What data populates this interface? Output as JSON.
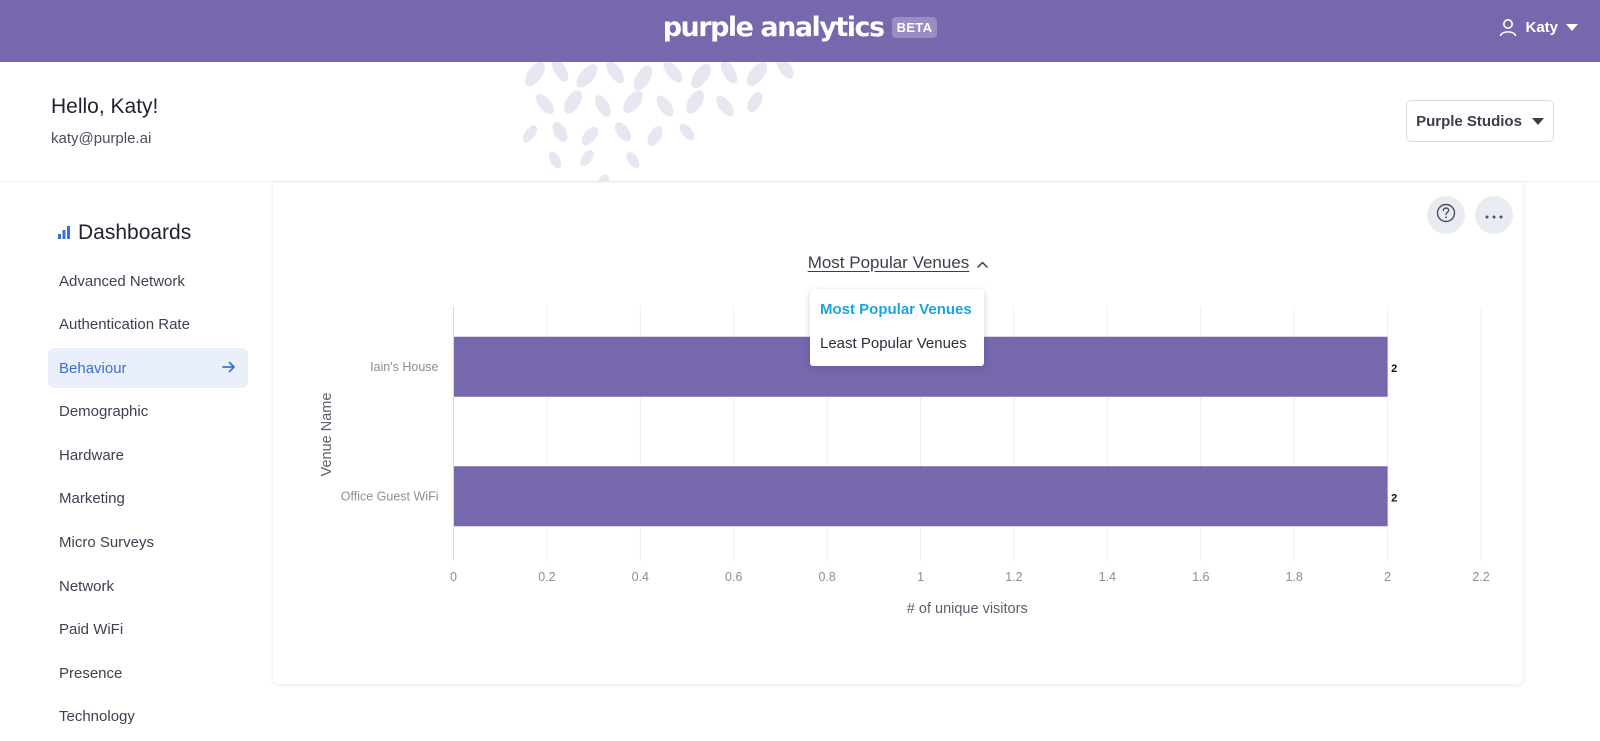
{
  "app": {
    "brand_name": "purple analytics",
    "brand_badge": "BETA",
    "user_name": "Katy"
  },
  "header": {
    "greeting": "Hello, Katy!",
    "email": "katy@purple.ai",
    "org_selector": "Purple Studios"
  },
  "sidebar": {
    "title": "Dashboards",
    "items": [
      {
        "label": "Advanced Network",
        "active": false
      },
      {
        "label": "Authentication Rate",
        "active": false
      },
      {
        "label": "Behaviour",
        "active": true
      },
      {
        "label": "Demographic",
        "active": false
      },
      {
        "label": "Hardware",
        "active": false
      },
      {
        "label": "Marketing",
        "active": false
      },
      {
        "label": "Micro Surveys",
        "active": false
      },
      {
        "label": "Network",
        "active": false
      },
      {
        "label": "Paid WiFi",
        "active": false
      },
      {
        "label": "Presence",
        "active": false
      },
      {
        "label": "Technology",
        "active": false
      }
    ]
  },
  "chart_panel": {
    "selected_view": "Most Popular Venues",
    "options": [
      "Most Popular Venues",
      "Least Popular Venues"
    ]
  },
  "colors": {
    "topbar": "#7767ad",
    "bar": "#7767ad",
    "accent": "#3d6fd1",
    "dropdown_selected": "#1aa5df"
  },
  "chart_data": {
    "type": "bar",
    "orientation": "horizontal",
    "categories": [
      "Iain's House",
      "Office Guest WiFi"
    ],
    "values": [
      2,
      2
    ],
    "data_labels": [
      "2",
      "2"
    ],
    "xlabel": "# of unique visitors",
    "ylabel": "Venue Name",
    "xlim": [
      0,
      2.2
    ],
    "xticks": [
      "0",
      "0.2",
      "0.4",
      "0.6",
      "0.8",
      "1",
      "1.2",
      "1.4",
      "1.6",
      "1.8",
      "2",
      "2.2"
    ],
    "grid": true
  }
}
